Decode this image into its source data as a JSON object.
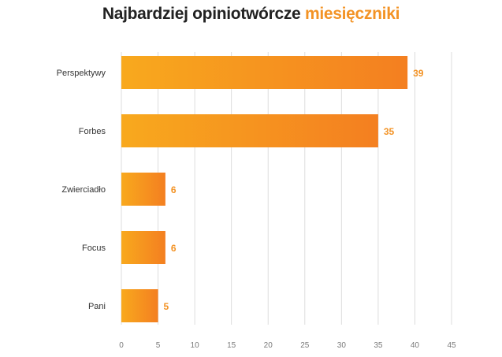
{
  "title": {
    "main": "Najbardziej opiniotwórcze",
    "accent": "miesięczniki"
  },
  "colors": {
    "bar_start": "#F8A91E",
    "bar_end": "#F47F20",
    "accent": "#F39325",
    "grid": "#dddddd"
  },
  "chart_data": {
    "type": "bar",
    "orientation": "horizontal",
    "title": "Najbardziej opiniotwórcze miesięczniki",
    "categories": [
      "Perspektywy",
      "Forbes",
      "Zwierciadło",
      "Focus",
      "Pani"
    ],
    "values": [
      39,
      35,
      6,
      6,
      5
    ],
    "xlim": [
      0,
      45
    ],
    "xticks": [
      0,
      5,
      10,
      15,
      20,
      25,
      30,
      35,
      40,
      45
    ],
    "grid": true,
    "xlabel": "",
    "ylabel": ""
  }
}
